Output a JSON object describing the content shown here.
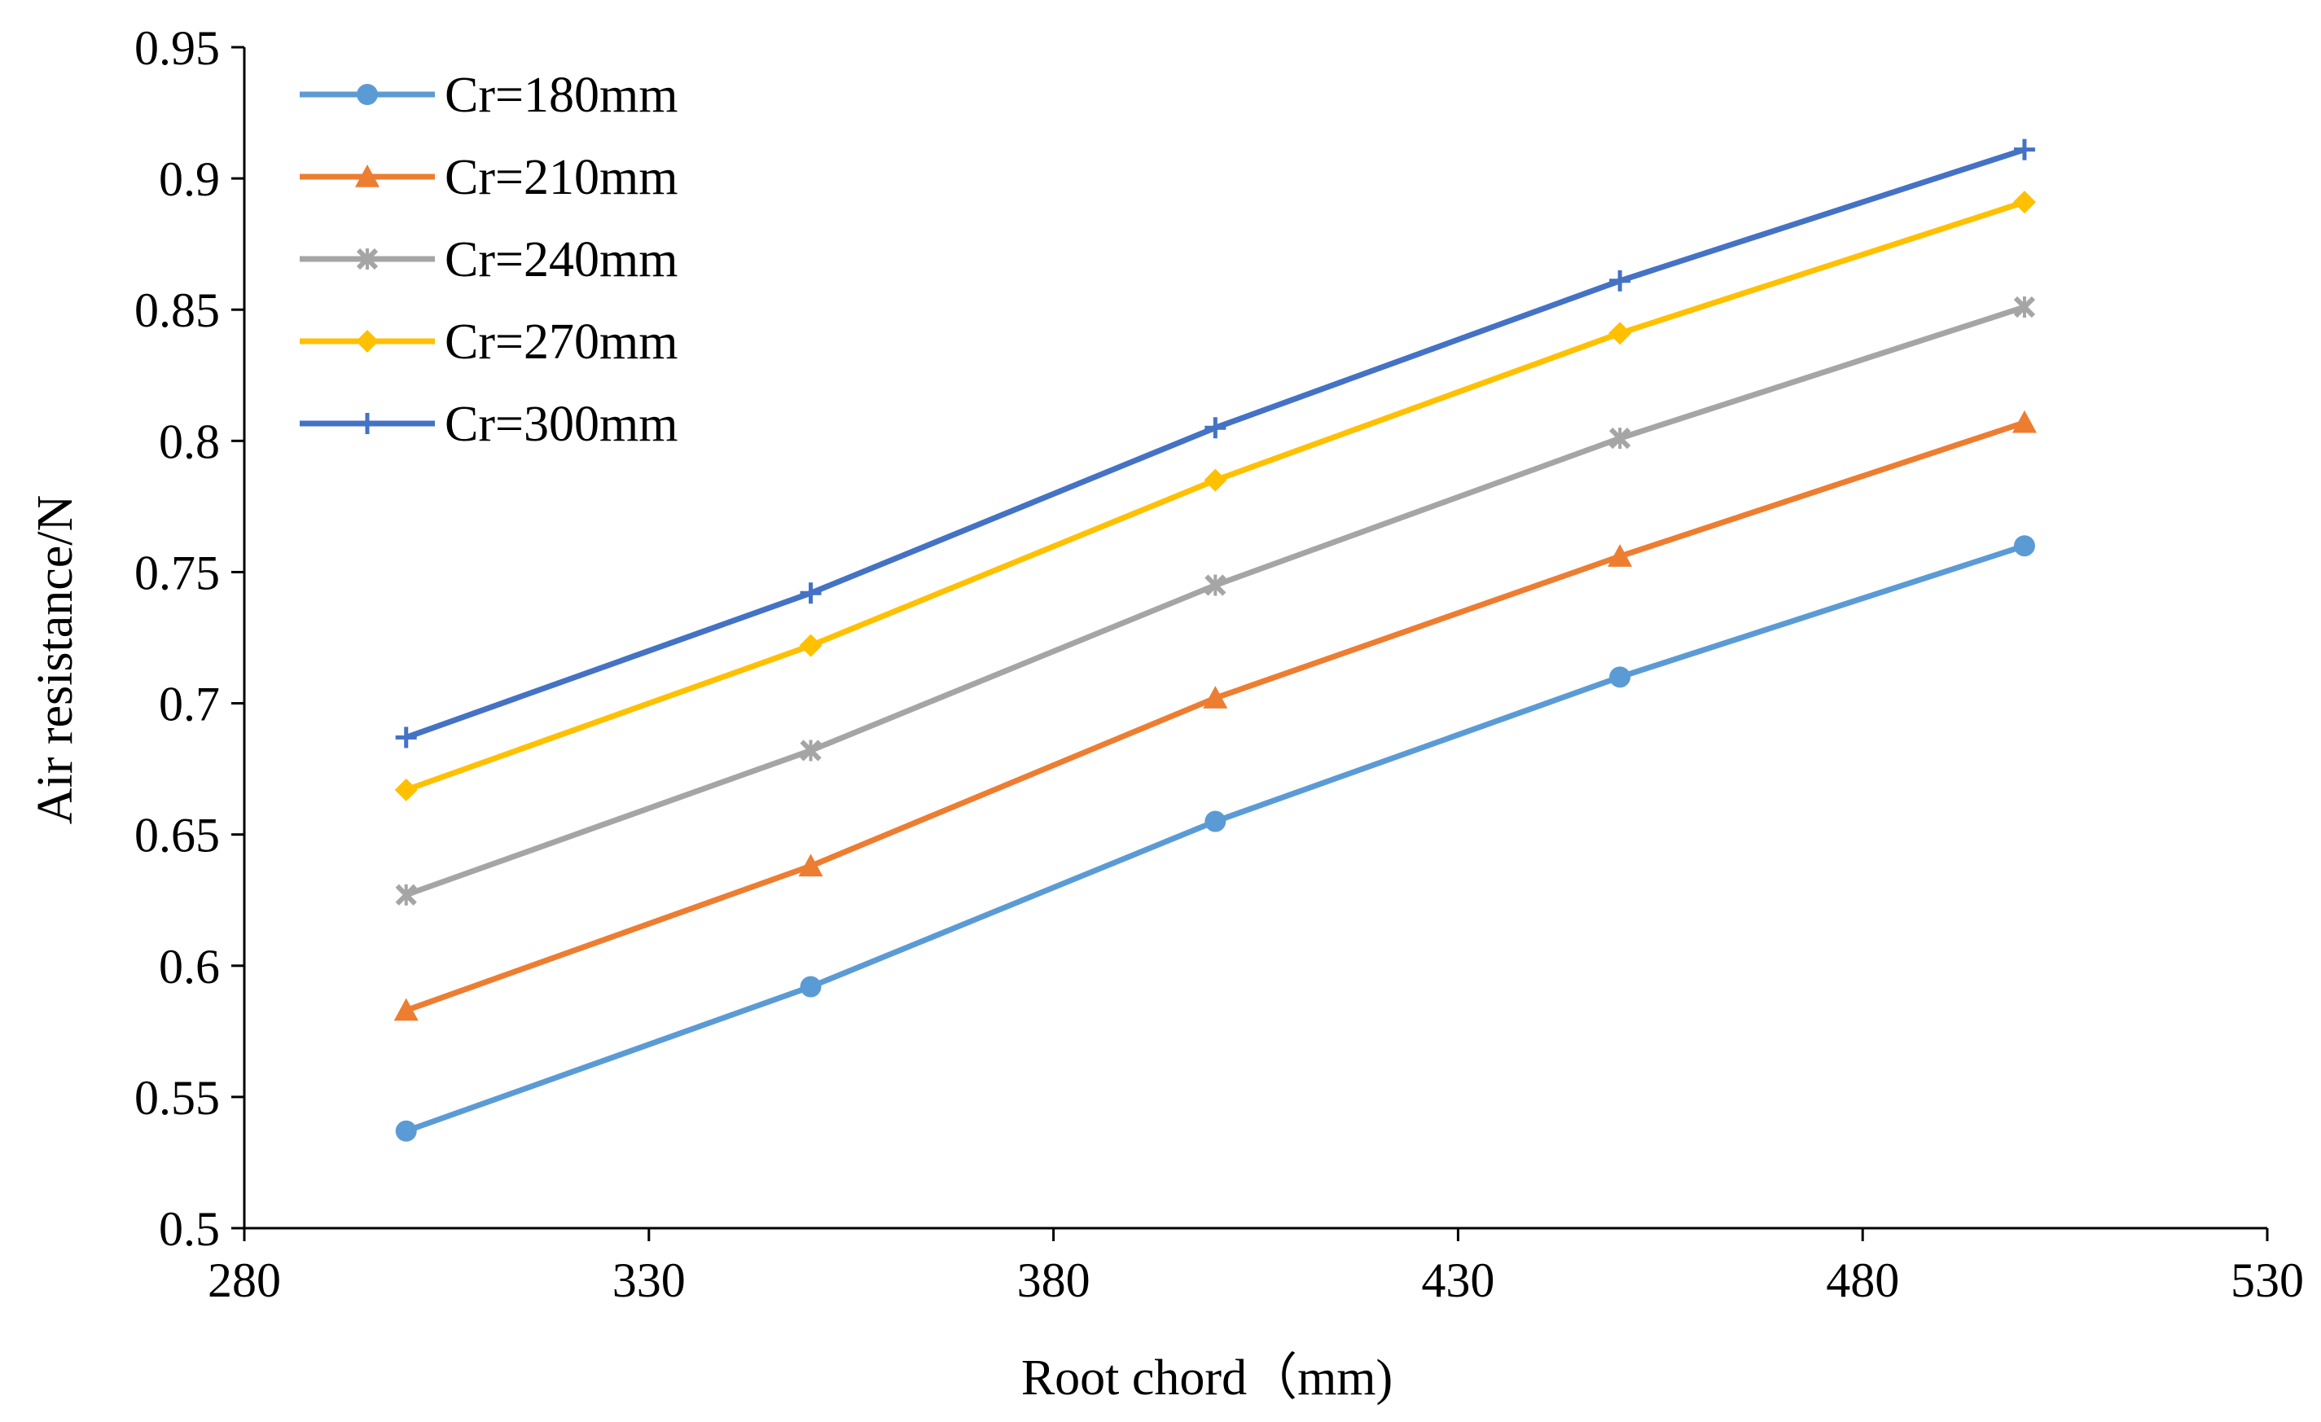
{
  "chart_data": {
    "type": "line",
    "title": "",
    "xlabel": "Root chord（mm)",
    "ylabel": "Air resistance/N",
    "xlim": [
      280,
      530
    ],
    "ylim": [
      0.5,
      0.95
    ],
    "x_ticks": [
      280,
      330,
      380,
      430,
      480,
      530
    ],
    "y_ticks": [
      0.5,
      0.55,
      0.6,
      0.65,
      0.7,
      0.75,
      0.8,
      0.85,
      0.9,
      0.95
    ],
    "x_tick_labels": [
      "280",
      "330",
      "380",
      "430",
      "480",
      "530"
    ],
    "y_tick_labels": [
      "0.5",
      "0.55",
      "0.6",
      "0.65",
      "0.7",
      "0.75",
      "0.8",
      "0.85",
      "0.9",
      "0.95"
    ],
    "grid": false,
    "legend_position": "top-left",
    "x": [
      300,
      350,
      400,
      450,
      500
    ],
    "series": [
      {
        "name": "Cr=180mm",
        "color": "#5B9BD5",
        "marker": "circle",
        "values": [
          0.537,
          0.592,
          0.655,
          0.71,
          0.76
        ]
      },
      {
        "name": "Cr=210mm",
        "color": "#ED7D31",
        "marker": "triangle",
        "values": [
          0.583,
          0.638,
          0.702,
          0.756,
          0.807
        ]
      },
      {
        "name": "Cr=240mm",
        "color": "#A5A5A5",
        "marker": "x",
        "values": [
          0.627,
          0.682,
          0.745,
          0.801,
          0.851
        ]
      },
      {
        "name": "Cr=270mm",
        "color": "#FFC000",
        "marker": "diamond",
        "values": [
          0.667,
          0.722,
          0.785,
          0.841,
          0.891
        ]
      },
      {
        "name": "Cr=300mm",
        "color": "#4472C4",
        "marker": "plus",
        "values": [
          0.687,
          0.742,
          0.805,
          0.861,
          0.911
        ]
      }
    ]
  }
}
